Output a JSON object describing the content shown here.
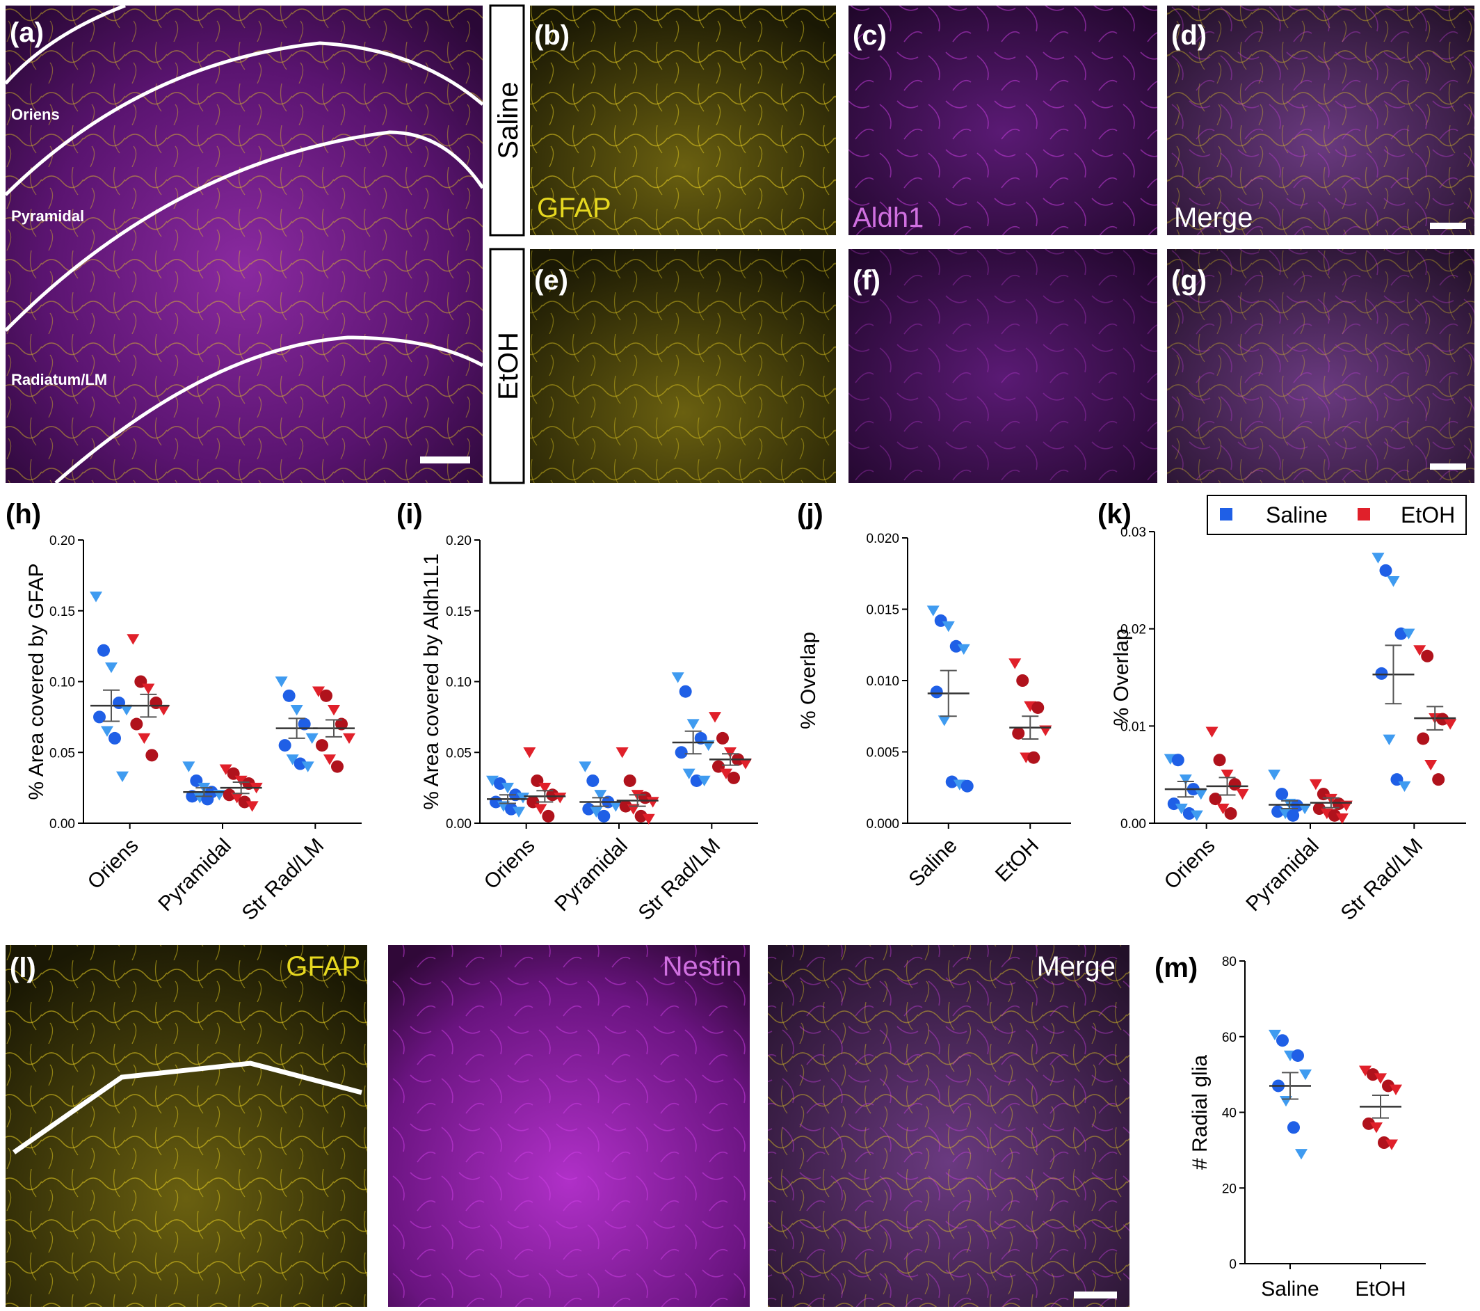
{
  "panels": {
    "a": "(a)",
    "b": "(b)",
    "c": "(c)",
    "d": "(d)",
    "e": "(e)",
    "f": "(f)",
    "g": "(g)",
    "h": "(h)",
    "i": "(i)",
    "j": "(j)",
    "k": "(k)",
    "l": "(l)",
    "m": "(m)"
  },
  "layers": {
    "oriens": "Oriens",
    "pyramidal": "Pyramidal",
    "radiatum": "Radiatum/LM"
  },
  "rows": {
    "saline": "Saline",
    "etoh": "EtOH"
  },
  "channels": {
    "gfap": "GFAP",
    "aldh1": "Aldh1",
    "merge": "Merge",
    "nestin": "Nestin"
  },
  "colors": {
    "saline_light": "#3f9bf0",
    "saline_dark": "#1f5fe6",
    "etoh_light": "#e0202a",
    "etoh_dark": "#b0121c",
    "gfap": "#f0e020",
    "magenta": "#b030c8"
  },
  "legend": {
    "saline": "Saline",
    "etoh": "EtOH"
  },
  "chart_data": [
    {
      "panel": "h",
      "type": "scatter",
      "ylabel": "% Area covered by GFAP",
      "categories": [
        "Oriens",
        "Pyramidal",
        "Str Rad/LM"
      ],
      "ylim": [
        0,
        0.2
      ],
      "yticks": [
        "0.00",
        "0.05",
        "0.10",
        "0.15",
        "0.20"
      ],
      "series": [
        {
          "name": "Saline",
          "means": [
            0.083,
            0.022,
            0.067
          ],
          "sem": [
            0.011,
            0.003,
            0.007
          ],
          "points": [
            [
              0.16,
              0.122,
              0.11,
              0.085,
              0.08,
              0.075,
              0.065,
              0.06,
              0.033
            ],
            [
              0.04,
              0.03,
              0.025,
              0.022,
              0.02,
              0.019,
              0.018,
              0.017
            ],
            [
              0.1,
              0.09,
              0.08,
              0.07,
              0.06,
              0.055,
              0.045,
              0.042,
              0.04
            ]
          ]
        },
        {
          "name": "EtOH",
          "means": [
            0.083,
            0.025,
            0.067
          ],
          "sem": [
            0.008,
            0.004,
            0.006
          ],
          "points": [
            [
              0.13,
              0.1,
              0.095,
              0.085,
              0.08,
              0.07,
              0.06,
              0.048
            ],
            [
              0.038,
              0.035,
              0.03,
              0.028,
              0.025,
              0.02,
              0.018,
              0.015,
              0.012
            ],
            [
              0.093,
              0.09,
              0.08,
              0.07,
              0.06,
              0.055,
              0.045,
              0.04
            ]
          ]
        }
      ]
    },
    {
      "panel": "i",
      "type": "scatter",
      "ylabel": "% Area covered by Aldh1L1",
      "categories": [
        "Oriens",
        "Pyramidal",
        "Str Rad/LM"
      ],
      "ylim": [
        0,
        0.2
      ],
      "yticks": [
        "0.00",
        "0.05",
        "0.10",
        "0.15",
        "0.20"
      ],
      "series": [
        {
          "name": "Saline",
          "means": [
            0.017,
            0.015,
            0.057
          ],
          "sem": [
            0.003,
            0.003,
            0.008
          ],
          "points": [
            [
              0.03,
              0.028,
              0.025,
              0.02,
              0.018,
              0.015,
              0.012,
              0.01,
              0.008
            ],
            [
              0.04,
              0.03,
              0.02,
              0.015,
              0.012,
              0.01,
              0.008,
              0.005
            ],
            [
              0.103,
              0.093,
              0.07,
              0.06,
              0.055,
              0.05,
              0.035,
              0.03,
              0.03
            ]
          ]
        },
        {
          "name": "EtOH",
          "means": [
            0.019,
            0.016,
            0.045
          ],
          "sem": [
            0.004,
            0.004,
            0.004
          ],
          "points": [
            [
              0.05,
              0.03,
              0.025,
              0.02,
              0.018,
              0.015,
              0.01,
              0.005
            ],
            [
              0.05,
              0.03,
              0.02,
              0.018,
              0.015,
              0.012,
              0.01,
              0.005,
              0.003
            ],
            [
              0.075,
              0.06,
              0.05,
              0.045,
              0.042,
              0.04,
              0.035,
              0.032
            ]
          ]
        }
      ]
    },
    {
      "panel": "j",
      "type": "scatter",
      "ylabel": "% Overlap",
      "categories": [
        "Saline",
        "EtOH"
      ],
      "ylim": [
        0,
        0.02
      ],
      "yticks": [
        "0.000",
        "0.005",
        "0.010",
        "0.015",
        "0.020"
      ],
      "series": [
        {
          "name": "Saline",
          "means": [
            0.0091
          ],
          "sem": [
            0.0016
          ],
          "points": [
            [
              0.0149,
              0.0142,
              0.0138,
              0.0124,
              0.0122,
              0.0092,
              0.0072,
              0.0029,
              0.0027,
              0.0026
            ]
          ]
        },
        {
          "name": "EtOH",
          "means": [
            0.0067
          ],
          "sem": [
            0.0008
          ],
          "points": [
            [
              0.0112,
              0.01,
              0.0082,
              0.0081,
              0.0065,
              0.0063,
              0.0046,
              0.0046
            ]
          ]
        }
      ]
    },
    {
      "panel": "k",
      "type": "scatter",
      "ylabel": "% Overlap",
      "categories": [
        "Oriens",
        "Pyramidal",
        "Str Rad/LM"
      ],
      "ylim": [
        0,
        0.03
      ],
      "yticks": [
        "0.00",
        "0.01",
        "0.02",
        "0.03"
      ],
      "series": [
        {
          "name": "Saline",
          "means": [
            0.0035,
            0.0019,
            0.0153
          ],
          "sem": [
            0.0008,
            0.0004,
            0.003
          ],
          "points": [
            [
              0.0066,
              0.0065,
              0.0045,
              0.0035,
              0.003,
              0.002,
              0.0015,
              0.001,
              0.0008
            ],
            [
              0.005,
              0.003,
              0.002,
              0.0018,
              0.0015,
              0.0012,
              0.001,
              0.0008
            ],
            [
              0.0273,
              0.026,
              0.0249,
              0.0195,
              0.0195,
              0.0154,
              0.0086,
              0.0045,
              0.0038
            ]
          ]
        },
        {
          "name": "EtOH",
          "means": [
            0.0038,
            0.0021,
            0.0108
          ],
          "sem": [
            0.0009,
            0.0005,
            0.0012
          ],
          "points": [
            [
              0.0094,
              0.0065,
              0.005,
              0.004,
              0.003,
              0.0025,
              0.0015,
              0.001
            ],
            [
              0.004,
              0.003,
              0.0025,
              0.002,
              0.0018,
              0.0015,
              0.001,
              0.0008,
              0.0005
            ],
            [
              0.0178,
              0.0172,
              0.0108,
              0.0107,
              0.0102,
              0.0087,
              0.006,
              0.0045
            ]
          ]
        }
      ]
    },
    {
      "panel": "m",
      "type": "scatter",
      "ylabel": "# Radial glia",
      "categories": [
        "Saline",
        "EtOH"
      ],
      "ylim": [
        0,
        80
      ],
      "yticks": [
        "0",
        "20",
        "40",
        "60",
        "80"
      ],
      "series": [
        {
          "name": "Saline",
          "means": [
            47
          ],
          "sem": [
            3.5
          ],
          "points": [
            [
              60.5,
              59,
              55,
              55,
              50,
              47,
              43,
              36,
              29
            ]
          ]
        },
        {
          "name": "EtOH",
          "means": [
            41.5
          ],
          "sem": [
            3
          ],
          "points": [
            [
              51,
              50,
              49,
              47,
              46,
              37,
              36,
              32,
              31.5
            ]
          ]
        }
      ]
    }
  ]
}
